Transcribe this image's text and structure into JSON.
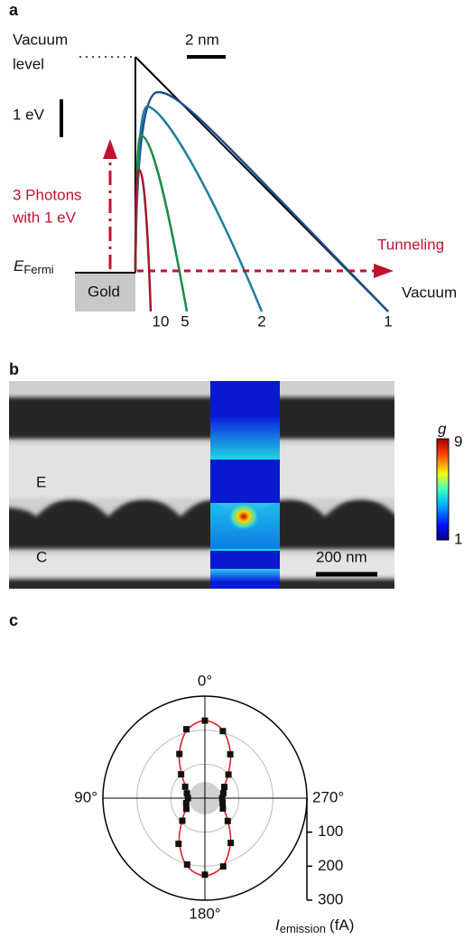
{
  "panel_a": {
    "label": "a",
    "vacuum_level": [
      "Vacuum",
      "level"
    ],
    "length_scale": "2 nm",
    "energy_scale": "1 eV",
    "photons": [
      "3 Photons",
      "with 1 eV"
    ],
    "fermi": {
      "symbol": "E",
      "subscript": "Fermi"
    },
    "metal": "Gold",
    "tunneling": "Tunneling",
    "vacuum": "Vacuum",
    "curves": [
      {
        "label": "10",
        "color": "#a3182c"
      },
      {
        "label": "5",
        "color": "#1c8a4c"
      },
      {
        "label": "2",
        "color": "#1f7c9c"
      },
      {
        "label": "1",
        "color": "#1d4f8a"
      }
    ]
  },
  "panel_b": {
    "label": "b",
    "regions": [
      "E",
      "C"
    ],
    "scale_bar": "200 nm",
    "colorbar": {
      "label": "g",
      "max": "9",
      "min": "1"
    }
  },
  "chart_data": {
    "type": "polar",
    "label": "c",
    "theta": [
      0,
      15,
      30,
      45,
      60,
      75,
      90,
      105,
      120,
      135,
      150,
      165,
      180,
      195,
      210,
      225,
      240,
      255,
      270,
      285,
      300,
      315,
      330,
      345
    ],
    "series": [
      {
        "color": "#111111",
        "values": [
          228,
          210,
          150,
          99,
          67,
          55,
          50,
          57,
          63,
          94,
          155,
          202,
          225,
          208,
          152,
          95,
          61,
          54,
          51,
          56,
          66,
          98,
          149,
          204
        ]
      },
      {
        "color": "#e0141e",
        "values": [
          228,
          206,
          151,
          96,
          64,
          53,
          52,
          53,
          64,
          96,
          151,
          206,
          228,
          206,
          151,
          96,
          64,
          53,
          52,
          53,
          64,
          96,
          151,
          206
        ]
      }
    ],
    "thetaticks": [
      {
        "value": 0,
        "label": "0°"
      },
      {
        "value": 90,
        "label": "90°"
      },
      {
        "value": 180,
        "label": "180°"
      },
      {
        "value": 270,
        "label": "270°"
      }
    ],
    "rlim": [
      0,
      300
    ],
    "rticks": [
      100,
      200,
      300
    ],
    "grid": true,
    "r_label": {
      "symbol": "I",
      "subscript": "emission",
      "unit": "(fA)"
    }
  }
}
